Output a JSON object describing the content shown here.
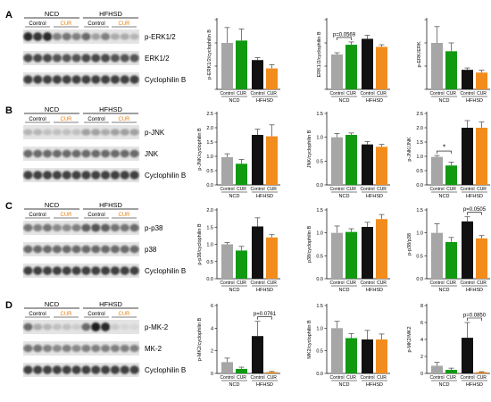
{
  "colors": {
    "ncd_control": "#a6a6a6",
    "ncd_cur": "#119911",
    "hfhsd_control": "#111111",
    "hfhsd_cur": "#f28c1c",
    "cur_label": "#e88010"
  },
  "blot_header": {
    "ncd": "NCD",
    "hfhsd": "HFHSD",
    "control": "Control",
    "cur": "CUR"
  },
  "panels": [
    {
      "letter": "A",
      "blots": [
        "p-ERK1/2",
        "ERK1/2",
        "Cyclophilin B"
      ]
    },
    {
      "letter": "B",
      "blots": [
        "p-JNK",
        "JNK",
        "Cyclophilin B"
      ]
    },
    {
      "letter": "C",
      "blots": [
        "p-p38",
        "p38",
        "Cyclophilin B"
      ]
    },
    {
      "letter": "D",
      "blots": [
        "p-MK-2",
        "MK-2",
        "Cyclophilin B"
      ]
    }
  ],
  "chart_common": {
    "categories": [
      "Control",
      "CUR",
      "Control",
      "CUR"
    ],
    "groups": [
      "NCD",
      "HFHSD"
    ]
  },
  "chart_data": [
    {
      "type": "bar",
      "ylabel": "p-ERK1/2/cyclophilin B",
      "values": [
        1.0,
        1.05,
        0.63,
        0.45
      ],
      "errors": [
        0.33,
        0.25,
        0.05,
        0.08
      ],
      "ylim": [
        0,
        1.5
      ],
      "yticks": [],
      "annotation": null
    },
    {
      "type": "bar",
      "ylabel": "ERK1/2/cyclophilin B",
      "values": [
        1.0,
        1.28,
        1.45,
        1.22
      ],
      "errors": [
        0.05,
        0.08,
        0.1,
        0.06
      ],
      "ylim": [
        0,
        2.0
      ],
      "yticks": [],
      "annotation": {
        "text": "p=0.0569",
        "from": 0,
        "to": 1
      }
    },
    {
      "type": "bar",
      "ylabel": "p-ERK/ERK",
      "values": [
        1.0,
        0.82,
        0.42,
        0.36
      ],
      "errors": [
        0.35,
        0.18,
        0.04,
        0.05
      ],
      "ylim": [
        0,
        1.5
      ],
      "yticks": [],
      "annotation": null
    },
    {
      "type": "bar",
      "ylabel": "p-JNK/cyclophilin B",
      "values": [
        0.97,
        0.74,
        1.75,
        1.7
      ],
      "errors": [
        0.12,
        0.15,
        0.2,
        0.4
      ],
      "ylim": [
        0,
        2.5
      ],
      "yticks": [
        "0.0",
        "0.5",
        "1.0",
        "1.5",
        "2.0",
        "2.5"
      ],
      "annotation": null
    },
    {
      "type": "bar",
      "ylabel": "JNK/cyclophilin B",
      "values": [
        1.0,
        1.05,
        0.85,
        0.8
      ],
      "errors": [
        0.08,
        0.04,
        0.06,
        0.05
      ],
      "ylim": [
        0,
        1.5
      ],
      "yticks": [
        "0.0",
        "0.5",
        "1.0",
        "1.5"
      ],
      "annotation": null
    },
    {
      "type": "bar",
      "ylabel": "p-JNK/JNK",
      "values": [
        0.98,
        0.68,
        2.0,
        2.0
      ],
      "errors": [
        0.05,
        0.12,
        0.25,
        0.2
      ],
      "ylim": [
        0,
        2.5
      ],
      "yticks": [
        "0.0",
        "0.5",
        "1.0",
        "1.5",
        "2.0",
        "2.5"
      ],
      "annotation": {
        "text": "*",
        "from": 0,
        "to": 1
      }
    },
    {
      "type": "bar",
      "ylabel": "p-p38/cyclophilin B",
      "values": [
        1.0,
        0.82,
        1.52,
        1.2
      ],
      "errors": [
        0.05,
        0.12,
        0.25,
        0.08
      ],
      "ylim": [
        0,
        2.0
      ],
      "yticks": [
        "0.0",
        "0.5",
        "1.0",
        "1.5",
        "2.0"
      ],
      "annotation": null
    },
    {
      "type": "bar",
      "ylabel": "p38/cyclophilin B",
      "values": [
        1.0,
        1.02,
        1.13,
        1.3
      ],
      "errors": [
        0.15,
        0.07,
        0.1,
        0.1
      ],
      "ylim": [
        0,
        1.5
      ],
      "yticks": [
        "0.0",
        "0.5",
        "1.0",
        "1.5"
      ],
      "annotation": null
    },
    {
      "type": "bar",
      "ylabel": "p-p38/p38",
      "values": [
        1.0,
        0.8,
        1.25,
        0.88
      ],
      "errors": [
        0.2,
        0.1,
        0.1,
        0.06
      ],
      "ylim": [
        0,
        1.5
      ],
      "yticks": [
        "0.0",
        "0.5",
        "1.0",
        "1.5"
      ],
      "annotation": {
        "text": "p=0.0505",
        "from": 2,
        "to": 3
      }
    },
    {
      "type": "bar",
      "ylabel": "p-MK2/cyclophilin B",
      "values": [
        1.0,
        0.4,
        3.3,
        0.12
      ],
      "errors": [
        0.35,
        0.15,
        1.3,
        0.05
      ],
      "ylim": [
        0,
        6
      ],
      "yticks": [
        "0",
        "2",
        "4",
        "6"
      ],
      "annotation": {
        "text": "p=0.0761",
        "from": 2,
        "to": 3
      }
    },
    {
      "type": "bar",
      "ylabel": "MK2/cyclophilin B",
      "values": [
        1.0,
        0.78,
        0.75,
        0.75
      ],
      "errors": [
        0.15,
        0.1,
        0.2,
        0.12
      ],
      "ylim": [
        0,
        1.5
      ],
      "yticks": [
        "0.0",
        "0.5",
        "1.0",
        "1.5"
      ],
      "annotation": null
    },
    {
      "type": "bar",
      "ylabel": "p-MK2/MK2",
      "values": [
        0.9,
        0.42,
        4.2,
        0.15
      ],
      "errors": [
        0.4,
        0.2,
        1.8,
        0.05
      ],
      "ylim": [
        0,
        8
      ],
      "yticks": [
        "0",
        "2",
        "4",
        "6",
        "8"
      ],
      "annotation": {
        "text": "p=0.0850",
        "from": 2,
        "to": 3
      }
    }
  ]
}
